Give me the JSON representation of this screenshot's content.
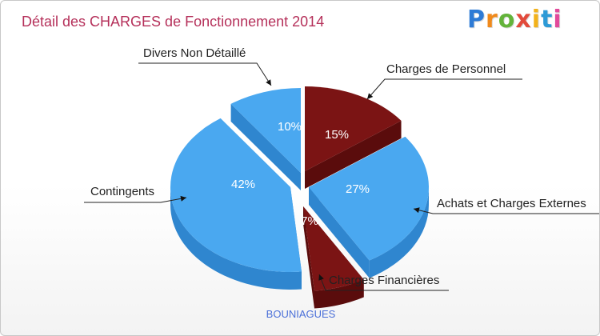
{
  "title": "Détail des CHARGES de Fonctionnement 2014",
  "footer": "BOUNIAGUES",
  "logo": {
    "text": "Proxiti",
    "colors": [
      "#2e7bd6",
      "#f08a1c",
      "#63b33a",
      "#e24a3b",
      "#f2b21b",
      "#2e9ad6",
      "#e24a9b"
    ]
  },
  "chart_data": {
    "type": "pie",
    "title": "Détail des CHARGES de Fonctionnement 2014",
    "slices": [
      {
        "label": "Charges de Personnel",
        "value": 15,
        "pct": "15%",
        "color": "#7b1414",
        "side": "#5a0c0c"
      },
      {
        "label": "Achats et Charges Externes",
        "value": 27,
        "pct": "27%",
        "color": "#4aa8f0",
        "side": "#2f86cf"
      },
      {
        "label": "Charges Financières",
        "value": 7,
        "pct": "7%",
        "color": "#7b1414",
        "side": "#5a0c0c"
      },
      {
        "label": "Contingents",
        "value": 42,
        "pct": "42%",
        "color": "#4aa8f0",
        "side": "#2f86cf"
      },
      {
        "label": "Divers Non Détaillé",
        "value": 10,
        "pct": "10%",
        "color": "#4aa8f0",
        "side": "#2f86cf"
      }
    ]
  }
}
